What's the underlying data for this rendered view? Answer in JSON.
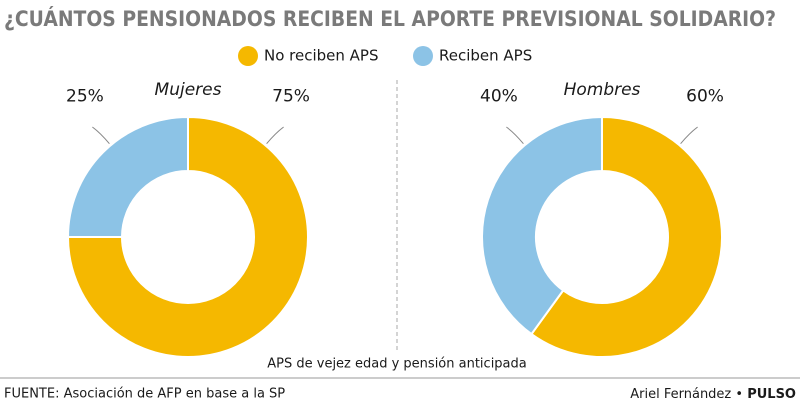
{
  "title": "¿CUÁNTOS PENSIONADOS RECIBEN EL APORTE PREVISIONAL SOLIDARIO?",
  "note": "APS de vejez edad y pensión anticipada",
  "source": "FUENTE: Asociación de AFP en base a la SP",
  "author": "Ariel Fernández",
  "outlet": "PULSO",
  "chart_data": [
    {
      "type": "donut",
      "title": "Mujeres",
      "categories": [
        "No reciben APS",
        "Reciben APS"
      ],
      "values": [
        75,
        25
      ],
      "value_labels": [
        "75%",
        "25%"
      ],
      "colors": [
        "#f5b800",
        "#8cc3e6"
      ]
    },
    {
      "type": "donut",
      "title": "Hombres",
      "categories": [
        "No reciben APS",
        "Reciben APS"
      ],
      "values": [
        60,
        40
      ],
      "value_labels": [
        "60%",
        "40%"
      ],
      "colors": [
        "#f5b800",
        "#8cc3e6"
      ]
    }
  ]
}
